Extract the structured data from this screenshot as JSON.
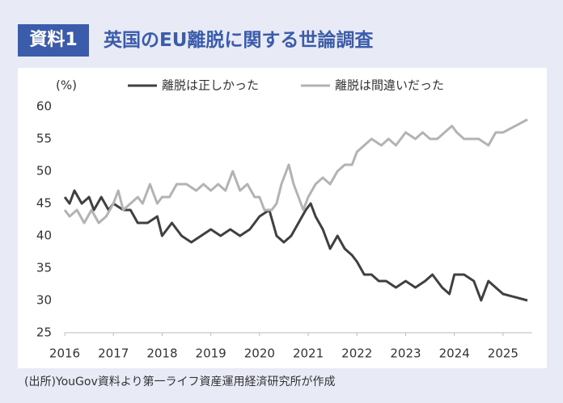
{
  "chart_data": {
    "type": "line",
    "badge": "資料1",
    "title": "英国のEU離脱に関する世論調査",
    "y_label": "(%)",
    "source": "(出所)YouGov資料より第一ライフ資産運用経済研究所が作成",
    "xlim": [
      2016,
      2025.6
    ],
    "xticks": [
      2016,
      2017,
      2018,
      2019,
      2020,
      2021,
      2022,
      2023,
      2024,
      2025
    ],
    "ylim": [
      25,
      60
    ],
    "yticks": [
      25,
      30,
      35,
      40,
      45,
      50,
      55,
      60
    ],
    "grid": false,
    "series": [
      {
        "name": "離脱は正しかった",
        "color": "#404040",
        "x": [
          2016.0,
          2016.1,
          2016.2,
          2016.35,
          2016.5,
          2016.6,
          2016.75,
          2016.9,
          2017.0,
          2017.2,
          2017.35,
          2017.5,
          2017.7,
          2017.9,
          2018.0,
          2018.2,
          2018.4,
          2018.6,
          2018.8,
          2019.0,
          2019.2,
          2019.4,
          2019.6,
          2019.8,
          2020.0,
          2020.2,
          2020.35,
          2020.5,
          2020.65,
          2020.8,
          2020.95,
          2021.05,
          2021.15,
          2021.3,
          2021.45,
          2021.6,
          2021.75,
          2021.9,
          2022.0,
          2022.15,
          2022.3,
          2022.45,
          2022.6,
          2022.8,
          2023.0,
          2023.2,
          2023.4,
          2023.55,
          2023.75,
          2023.9,
          2024.0,
          2024.2,
          2024.4,
          2024.55,
          2024.7,
          2024.85,
          2025.0,
          2025.5
        ],
        "values": [
          46,
          45,
          47,
          45,
          46,
          44,
          46,
          44,
          45,
          44,
          44,
          42,
          42,
          43,
          40,
          42,
          40,
          39,
          40,
          41,
          40,
          41,
          40,
          41,
          43,
          44,
          40,
          39,
          40,
          42,
          44,
          45,
          43,
          41,
          38,
          40,
          38,
          37,
          36,
          34,
          34,
          33,
          33,
          32,
          33,
          32,
          33,
          34,
          32,
          31,
          34,
          34,
          33,
          30,
          33,
          32,
          31,
          30
        ]
      },
      {
        "name": "離脱は間違いだった",
        "color": "#b3b3b3",
        "x": [
          2016.0,
          2016.1,
          2016.25,
          2016.4,
          2016.55,
          2016.7,
          2016.85,
          2017.0,
          2017.1,
          2017.2,
          2017.35,
          2017.5,
          2017.6,
          2017.75,
          2017.9,
          2018.0,
          2018.15,
          2018.3,
          2018.5,
          2018.7,
          2018.85,
          2019.0,
          2019.15,
          2019.3,
          2019.45,
          2019.6,
          2019.75,
          2019.9,
          2020.0,
          2020.1,
          2020.25,
          2020.35,
          2020.45,
          2020.6,
          2020.7,
          2020.8,
          2020.9,
          2021.0,
          2021.15,
          2021.3,
          2021.45,
          2021.6,
          2021.75,
          2021.9,
          2022.0,
          2022.15,
          2022.3,
          2022.5,
          2022.65,
          2022.8,
          2023.0,
          2023.2,
          2023.35,
          2023.5,
          2023.65,
          2023.8,
          2023.95,
          2024.05,
          2024.2,
          2024.5,
          2024.7,
          2024.85,
          2025.0,
          2025.5
        ],
        "values": [
          44,
          43,
          44,
          42,
          44,
          42,
          43,
          45,
          47,
          44,
          45,
          46,
          45,
          48,
          45,
          46,
          46,
          48,
          48,
          47,
          48,
          47,
          48,
          47,
          50,
          47,
          48,
          46,
          46,
          44,
          44,
          45,
          48,
          51,
          48,
          46,
          44,
          46,
          48,
          49,
          48,
          50,
          51,
          51,
          53,
          54,
          55,
          54,
          55,
          54,
          56,
          55,
          56,
          55,
          55,
          56,
          57,
          56,
          55,
          55,
          54,
          56,
          56,
          58
        ]
      }
    ]
  }
}
